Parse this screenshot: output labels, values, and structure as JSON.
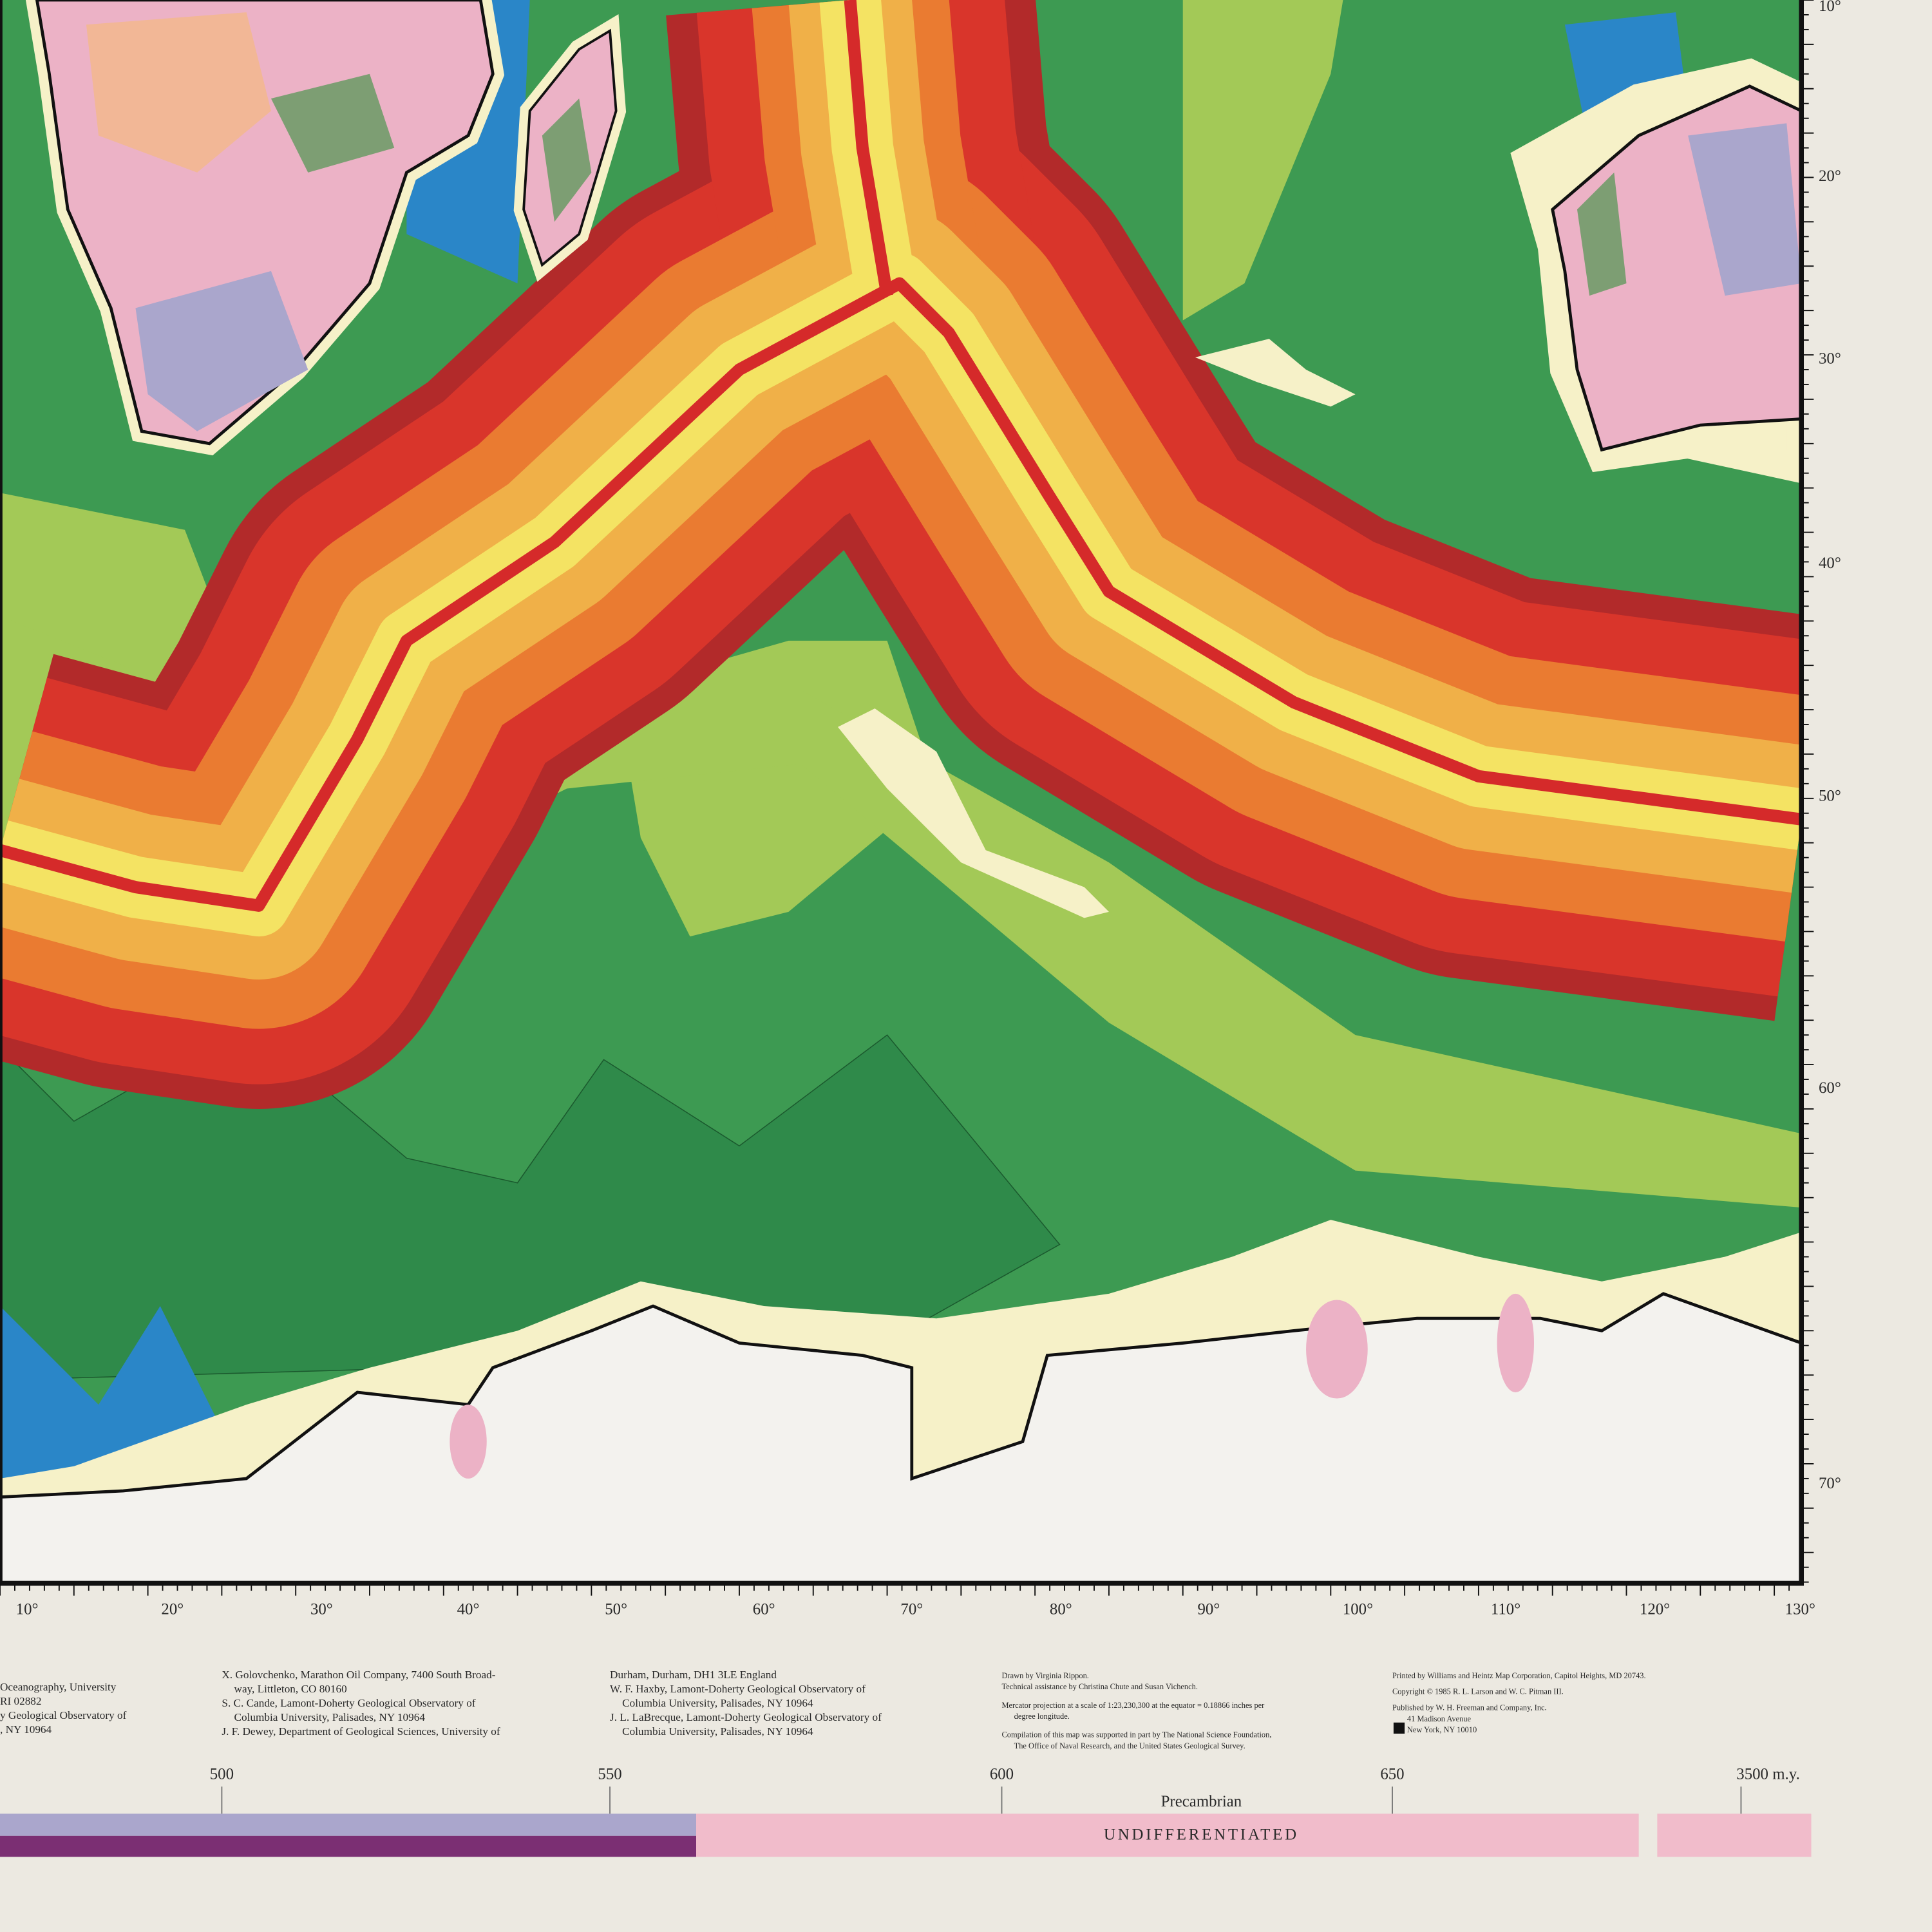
{
  "map": {
    "latitude_labels": [
      "10°",
      "20°",
      "30°",
      "40°",
      "50°",
      "60°",
      "70°"
    ],
    "longitude_labels": [
      "10°",
      "20°",
      "30°",
      "40°",
      "50°",
      "60°",
      "70°",
      "80°",
      "90°",
      "100°",
      "110°",
      "120°",
      "130°"
    ]
  },
  "credits": {
    "columns": [
      [
        "Oceanography, University",
        "RI 02882",
        "y Geological Observatory of",
        ", NY 10964"
      ],
      [
        "X. Golovchenko, Marathon Oil Company, 7400 South Broad-",
        "way, Littleton, CO 80160",
        "S. C. Cande, Lamont-Doherty Geological Observatory of",
        "Columbia University, Palisades, NY 10964",
        "J. F. Dewey, Department of Geological Sciences, University of"
      ],
      [
        "Durham, Durham, DH1 3LE England",
        "W. F. Haxby, Lamont-Doherty Geological Observatory of",
        "Columbia University, Palisades, NY 10964",
        "J. L. LaBrecque, Lamont-Doherty Geological Observatory of",
        "Columbia University, Palisades, NY 10964"
      ],
      [
        "Drawn by Virginia Rippon.",
        "Technical assistance by Christina Chute and Susan Vichench.",
        "Mercator projection at a scale of 1:23,230,300 at the equator = 0.18866 inches per",
        "degree longitude.",
        "Compilation of this map was supported in part by The National Science Foundation,",
        "The Office of Naval Research, and the United States Geological Survey."
      ],
      [
        "Printed by Williams and Heintz Map Corporation, Capitol Heights, MD 20743.",
        "Copyright © 1985 R. L. Larson and W. C. Pitman III.",
        "Published by W. H. Freeman and Company, Inc.",
        "41 Madison Avenue",
        "New York, NY 10010"
      ]
    ]
  },
  "timescale": {
    "ticks": [
      "500",
      "550",
      "600",
      "650",
      "3500 m.y."
    ],
    "period": "Precambrian",
    "band_label": "UNDIFFERENTIATED"
  }
}
